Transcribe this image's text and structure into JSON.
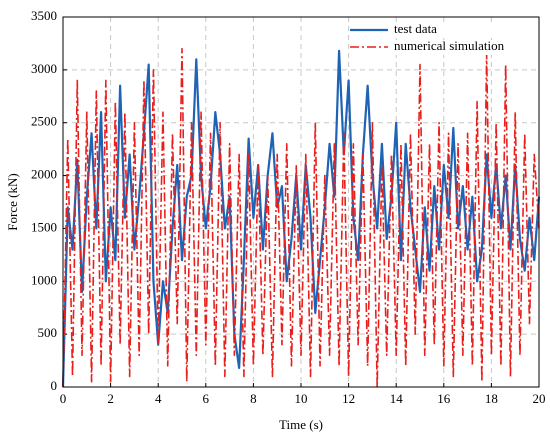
{
  "chart_data": {
    "type": "line",
    "x_label": "Time (s)",
    "y_label": "Force (kN)",
    "x": [
      0,
      0.2,
      0.4,
      0.6,
      0.8,
      1,
      1.2,
      1.4,
      1.6,
      1.8,
      2,
      2.2,
      2.4,
      2.6,
      2.8,
      3,
      3.2,
      3.4,
      3.6,
      3.8,
      4,
      4.2,
      4.4,
      4.6,
      4.8,
      5,
      5.2,
      5.4,
      5.6,
      5.8,
      6,
      6.2,
      6.4,
      6.6,
      6.8,
      7,
      7.2,
      7.4,
      7.6,
      7.8,
      8,
      8.2,
      8.4,
      8.6,
      8.8,
      9,
      9.2,
      9.4,
      9.6,
      9.8,
      10,
      10.2,
      10.4,
      10.6,
      10.8,
      11,
      11.2,
      11.4,
      11.6,
      11.8,
      12,
      12.2,
      12.4,
      12.6,
      12.8,
      13,
      13.2,
      13.4,
      13.6,
      13.8,
      14,
      14.2,
      14.4,
      14.6,
      14.8,
      15,
      15.2,
      15.4,
      15.6,
      15.8,
      16,
      16.2,
      16.4,
      16.6,
      16.8,
      17,
      17.2,
      17.4,
      17.6,
      17.8,
      18,
      18.2,
      18.4,
      18.6,
      18.8,
      19,
      19.2,
      19.4,
      19.6,
      19.8,
      20
    ],
    "series": [
      {
        "name": "test data",
        "color": "#1f63b5",
        "style": "solid",
        "values": [
          0,
          1700,
          1300,
          2150,
          900,
          1800,
          2400,
          1500,
          2600,
          1000,
          1700,
          1200,
          2850,
          1600,
          2200,
          1300,
          1800,
          2400,
          3050,
          1000,
          400,
          1000,
          700,
          1500,
          2100,
          1200,
          1800,
          2000,
          3100,
          2000,
          1500,
          1900,
          2600,
          2200,
          1500,
          1800,
          500,
          180,
          1200,
          2350,
          1600,
          2100,
          1300,
          2000,
          2400,
          1700,
          1900,
          1000,
          1400,
          2000,
          1300,
          2100,
          1600,
          700,
          1200,
          1700,
          2300,
          1800,
          3180,
          2200,
          2900,
          1600,
          1200,
          2200,
          2850,
          2000,
          1500,
          2300,
          1400,
          1800,
          2500,
          1200,
          2300,
          1700,
          1300,
          900,
          1700,
          1100,
          1900,
          1300,
          2100,
          1600,
          2450,
          1500,
          1900,
          1300,
          1800,
          1000,
          1300,
          2200,
          1600,
          2100,
          1500,
          2000,
          1300,
          2100,
          1400,
          1100,
          1600,
          1200,
          1800
        ]
      },
      {
        "name": "numerical simulation",
        "color": "#e8201c",
        "style": "dashdot",
        "values": [
          0,
          2350,
          100,
          2900,
          300,
          2600,
          50,
          2800,
          200,
          2900,
          50,
          2700,
          400,
          2600,
          100,
          2500,
          300,
          2900,
          500,
          3000,
          400,
          2600,
          200,
          2400,
          600,
          3200,
          50,
          2500,
          300,
          2600,
          400,
          2400,
          200,
          2500,
          100,
          2300,
          300,
          2200,
          100,
          2200,
          200,
          2100,
          300,
          2000,
          100,
          2200,
          400,
          2300,
          200,
          2100,
          300,
          2200,
          100,
          2500,
          200,
          2000,
          300,
          2300,
          200,
          2400,
          100,
          2300,
          400,
          2200,
          200,
          2500,
          0,
          2100,
          300,
          2200,
          300,
          2300,
          200,
          2400,
          500,
          3050,
          300,
          2300,
          400,
          2500,
          200,
          2400,
          100,
          2300,
          300,
          2400,
          200,
          2700,
          50,
          3150,
          300,
          2500,
          200,
          3050,
          100,
          2600,
          300,
          2400,
          600,
          2200,
          1500
        ]
      }
    ],
    "xlim": [
      0,
      20
    ],
    "xticks": [
      0,
      2,
      4,
      6,
      8,
      10,
      12,
      14,
      16,
      18,
      20
    ],
    "ylim": [
      0,
      3500
    ],
    "yticks": [
      0,
      500,
      1000,
      1500,
      2000,
      2500,
      3000,
      3500
    ],
    "grid": true,
    "legend": "top-right"
  }
}
